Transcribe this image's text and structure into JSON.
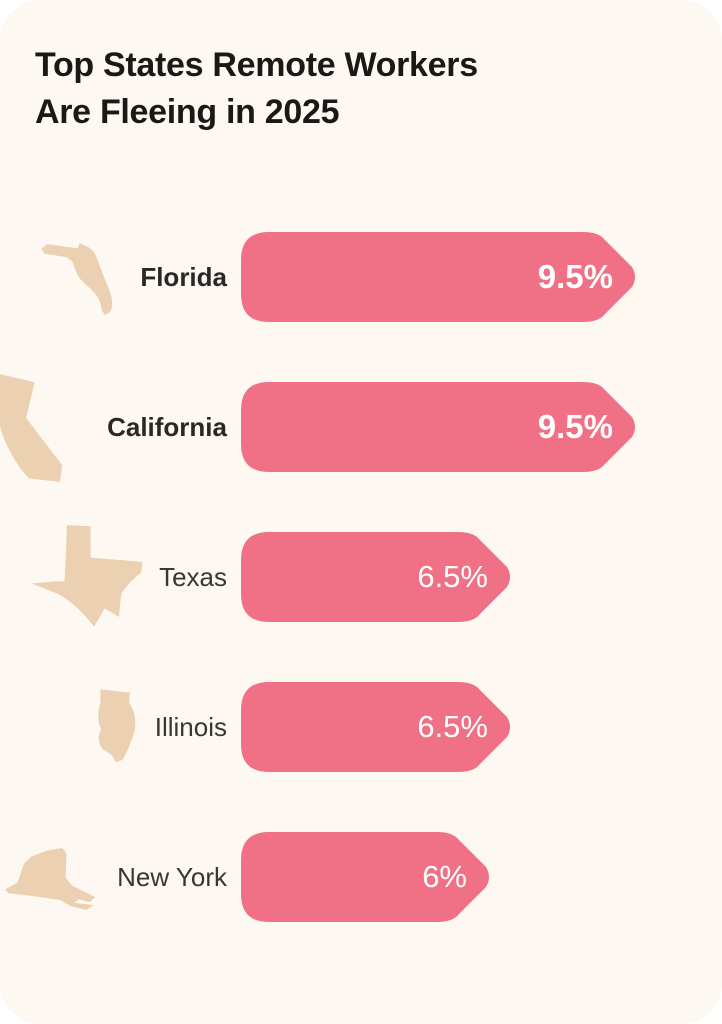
{
  "header": {
    "title_line1": "Top States Remote Workers",
    "title_line2": "Are Fleeing in 2025"
  },
  "chart_data": {
    "type": "bar",
    "orientation": "horizontal",
    "title": "Top States Remote Workers Are Fleeing in 2025",
    "unit": "%",
    "categories": [
      "Florida",
      "California",
      "Texas",
      "Illinois",
      "New York"
    ],
    "values": [
      9.5,
      9.5,
      6.5,
      6.5,
      6
    ],
    "value_labels": [
      "9.5%",
      "9.5%",
      "6.5%",
      "6.5%",
      "6%"
    ],
    "emphasized": [
      true,
      true,
      false,
      false,
      false
    ],
    "icons": [
      "florida-state-icon",
      "california-state-icon",
      "texas-state-icon",
      "illinois-state-icon",
      "new-york-state-icon"
    ],
    "xlim": [
      0,
      10
    ],
    "grid": false,
    "legend": false,
    "colors": {
      "bar": "#f07086",
      "icon": "#ecd0b2",
      "card_background": "#fdf8f2",
      "page_background": "#ffffff",
      "title_text": "#1c1817",
      "label_text": "#3a3634",
      "value_text": "#ffffff"
    }
  }
}
